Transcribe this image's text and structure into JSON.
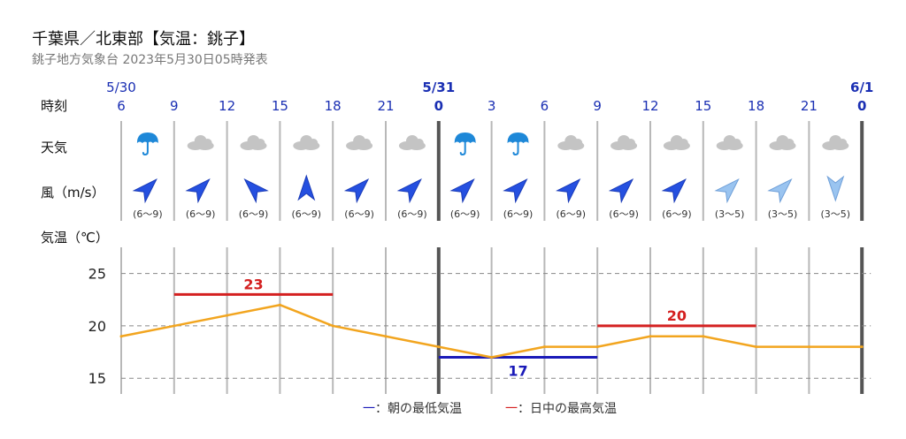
{
  "header": {
    "title": "千葉県／北東部【気温：銚子】",
    "subtitle": "銚子地方気象台 2023年5月30日05時発表"
  },
  "row_labels": {
    "time": "時刻",
    "weather": "天気",
    "wind": "風（m/s）",
    "temperature": "気温（℃）"
  },
  "colors": {
    "date_and_hour": "#1a2fb3",
    "temp_line": "#f2a51f",
    "max_temp": "#d42020",
    "min_temp": "#1a1ab8",
    "cloud": "#c4c4c4",
    "umbrella": "#1e88d8",
    "wind_strong": "#2550e0",
    "wind_weak": "#9ac4f0"
  },
  "chart_data": {
    "type": "line",
    "dates": [
      {
        "label": "5/30",
        "at": 0
      },
      {
        "label": "5/31",
        "at": 6
      },
      {
        "label": "6/1",
        "at": 14
      }
    ],
    "hours": [
      "6",
      "9",
      "12",
      "15",
      "18",
      "21",
      "0",
      "3",
      "6",
      "9",
      "12",
      "15",
      "18",
      "21",
      "0"
    ],
    "bold_hours": [
      6,
      14
    ],
    "weather": [
      "rain",
      "cloudy",
      "cloudy",
      "cloudy",
      "cloudy",
      "cloudy",
      "rain",
      "rain",
      "cloudy",
      "cloudy",
      "cloudy",
      "cloudy",
      "cloudy",
      "cloudy"
    ],
    "wind": [
      {
        "dir": "SW",
        "speed": "(6～9)",
        "strength": "strong"
      },
      {
        "dir": "SW",
        "speed": "(6～9)",
        "strength": "strong"
      },
      {
        "dir": "SE",
        "speed": "(6～9)",
        "strength": "strong"
      },
      {
        "dir": "S",
        "speed": "(6～9)",
        "strength": "strong"
      },
      {
        "dir": "SW",
        "speed": "(6～9)",
        "strength": "strong"
      },
      {
        "dir": "SW",
        "speed": "(6～9)",
        "strength": "strong"
      },
      {
        "dir": "SW",
        "speed": "(6～9)",
        "strength": "strong"
      },
      {
        "dir": "SW",
        "speed": "(6～9)",
        "strength": "strong"
      },
      {
        "dir": "SW",
        "speed": "(6～9)",
        "strength": "strong"
      },
      {
        "dir": "SW",
        "speed": "(6～9)",
        "strength": "strong"
      },
      {
        "dir": "SW",
        "speed": "(6～9)",
        "strength": "strong"
      },
      {
        "dir": "SW",
        "speed": "(3～5)",
        "strength": "weak"
      },
      {
        "dir": "SW",
        "speed": "(3～5)",
        "strength": "weak"
      },
      {
        "dir": "N",
        "speed": "(3～5)",
        "strength": "weak"
      }
    ],
    "temperature": {
      "x": [
        0,
        1,
        2,
        3,
        4,
        5,
        6,
        7,
        8,
        9,
        10,
        11,
        12,
        13,
        14
      ],
      "y": [
        19,
        20,
        21,
        22,
        20,
        19,
        18,
        17,
        18,
        18,
        19,
        19,
        18,
        18,
        18
      ]
    },
    "max_temps": [
      {
        "from": 1,
        "to": 4,
        "value": 23,
        "label": "23"
      },
      {
        "from": 9,
        "to": 12,
        "value": 20,
        "label": "20"
      }
    ],
    "min_temps": [
      {
        "from": 6,
        "to": 9,
        "value": 17,
        "label": "17"
      }
    ],
    "y_ticks": [
      15,
      20,
      25
    ],
    "ylim": [
      13.5,
      27.5
    ],
    "grid": true,
    "legend": [
      {
        "key": "min",
        "label": "一：朝の最低気温"
      },
      {
        "key": "max",
        "label": "一：日中の最高気温"
      }
    ]
  }
}
